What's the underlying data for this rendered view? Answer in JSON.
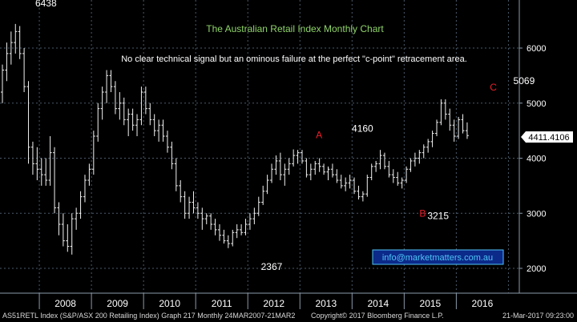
{
  "chart_data": {
    "type": "ohlc",
    "title": "The Australian Retail Index Monthly Chart",
    "subtitle": "No clear technical signal but an ominous failure at the perfect \"c-point\" retracement area.",
    "watermark": "info@marketmatters.com.au",
    "ylim": [
      1500,
      6700
    ],
    "y_ticks": [
      2000,
      3000,
      4000,
      5000,
      6000
    ],
    "y_tick_labels": [
      "2000",
      "3000",
      "4000",
      "5000",
      "6000"
    ],
    "x_ticks": [
      "2008",
      "2009",
      "2010",
      "2011",
      "2012",
      "2013",
      "2014",
      "2015",
      "2016"
    ],
    "last_price_label": "4411.4106",
    "last_price": 4411.41,
    "annotations": [
      {
        "id": "high_2007",
        "text": "6438",
        "x": 7,
        "y": 6438,
        "color": "#ffffff"
      },
      {
        "id": "low_2012",
        "text": "2367",
        "x": 61,
        "y": 2367,
        "color": "#ffffff"
      },
      {
        "id": "A",
        "text": "A",
        "x": 74,
        "y": 4100,
        "color": "#e8202a"
      },
      {
        "id": "peak_2013",
        "text": "4160",
        "x": 81,
        "y": 4160,
        "color": "#ffffff"
      },
      {
        "id": "B",
        "text": "B",
        "x": 96,
        "y": 3260,
        "color": "#e8202a"
      },
      {
        "id": "low_2015",
        "text": "3215",
        "x": 96,
        "y": 3215,
        "color": "#ffffff"
      },
      {
        "id": "C",
        "text": "C",
        "x": 115,
        "y": 5069,
        "color": "#e8202a"
      },
      {
        "id": "high_2016",
        "text": "5069",
        "x": 118,
        "y": 5069,
        "color": "#ffffff"
      }
    ],
    "series": [
      {
        "values": [
          [
            5200,
            5700,
            5000,
            5600
          ],
          [
            5600,
            6100,
            5400,
            5900
          ],
          [
            5900,
            6300,
            5700,
            6100
          ],
          [
            6100,
            6438,
            5900,
            6300
          ],
          [
            6300,
            6400,
            5800,
            5900
          ],
          [
            5900,
            6000,
            5200,
            5300
          ],
          [
            5300,
            5400,
            3900,
            4200
          ],
          [
            4200,
            4300,
            3700,
            3900
          ],
          [
            3900,
            4200,
            3600,
            3800
          ],
          [
            3800,
            4000,
            3500,
            3700
          ],
          [
            3700,
            4000,
            3500,
            3600
          ],
          [
            3600,
            4400,
            3500,
            4100
          ],
          [
            4100,
            4200,
            3000,
            3100
          ],
          [
            3100,
            3200,
            2600,
            2800
          ],
          [
            2800,
            3000,
            2400,
            2500
          ],
          [
            2500,
            2800,
            2300,
            2400
          ],
          [
            2400,
            3000,
            2250,
            2900
          ],
          [
            2900,
            3100,
            2700,
            3000
          ],
          [
            3000,
            3400,
            2900,
            3300
          ],
          [
            3300,
            3700,
            3200,
            3600
          ],
          [
            3600,
            3900,
            3500,
            3800
          ],
          [
            3800,
            4500,
            3700,
            4400
          ],
          [
            4400,
            5000,
            4300,
            4900
          ],
          [
            4900,
            5300,
            4700,
            5200
          ],
          [
            5200,
            5600,
            5000,
            5500
          ],
          [
            5500,
            5600,
            5200,
            5300
          ],
          [
            5300,
            5400,
            4800,
            4900
          ],
          [
            4900,
            5200,
            4700,
            5000
          ],
          [
            5000,
            5100,
            4600,
            4700
          ],
          [
            4700,
            4900,
            4400,
            4800
          ],
          [
            4800,
            4900,
            4500,
            4600
          ],
          [
            4600,
            4800,
            4400,
            4700
          ],
          [
            4700,
            5300,
            4600,
            5200
          ],
          [
            5200,
            5300,
            4800,
            4900
          ],
          [
            4900,
            5000,
            4600,
            4700
          ],
          [
            4700,
            4800,
            4400,
            4500
          ],
          [
            4500,
            4700,
            4300,
            4600
          ],
          [
            4600,
            4700,
            4300,
            4400
          ],
          [
            4400,
            4500,
            4100,
            4200
          ],
          [
            4200,
            4300,
            3800,
            3900
          ],
          [
            3900,
            4000,
            3400,
            3500
          ],
          [
            3500,
            3600,
            3200,
            3300
          ],
          [
            3300,
            3400,
            2900,
            3000
          ],
          [
            3000,
            3300,
            2900,
            3200
          ],
          [
            3200,
            3400,
            3000,
            3100
          ],
          [
            3100,
            3200,
            2900,
            3000
          ],
          [
            3000,
            3100,
            2700,
            2900
          ],
          [
            2900,
            3000,
            2800,
            2950
          ],
          [
            2950,
            3000,
            2700,
            2800
          ],
          [
            2800,
            2900,
            2600,
            2700
          ],
          [
            2700,
            2800,
            2500,
            2600
          ],
          [
            2600,
            2700,
            2450,
            2500
          ],
          [
            2500,
            2600,
            2367,
            2450
          ],
          [
            2450,
            2700,
            2400,
            2650
          ],
          [
            2650,
            2800,
            2550,
            2700
          ],
          [
            2700,
            2800,
            2600,
            2650
          ],
          [
            2650,
            2900,
            2600,
            2800
          ],
          [
            2800,
            3000,
            2700,
            2900
          ],
          [
            2900,
            3100,
            2800,
            3000
          ],
          [
            3000,
            3300,
            2950,
            3200
          ],
          [
            3200,
            3500,
            3150,
            3400
          ],
          [
            3400,
            3700,
            3350,
            3600
          ],
          [
            3600,
            3900,
            3550,
            3800
          ],
          [
            3800,
            4050,
            3700,
            3950
          ],
          [
            3950,
            4100,
            3600,
            3700
          ],
          [
            3700,
            3900,
            3500,
            3800
          ],
          [
            3800,
            4000,
            3700,
            3900
          ],
          [
            3900,
            4160,
            3850,
            4050
          ],
          [
            4050,
            4150,
            3900,
            4100
          ],
          [
            4100,
            4150,
            3900,
            3950
          ],
          [
            3950,
            4000,
            3650,
            3700
          ],
          [
            3700,
            3900,
            3600,
            3800
          ],
          [
            3800,
            3950,
            3700,
            3900
          ],
          [
            3900,
            4000,
            3750,
            3850
          ],
          [
            3850,
            3900,
            3700,
            3750
          ],
          [
            3750,
            3850,
            3600,
            3800
          ],
          [
            3800,
            3900,
            3650,
            3700
          ],
          [
            3700,
            3800,
            3550,
            3600
          ],
          [
            3600,
            3700,
            3450,
            3500
          ],
          [
            3500,
            3650,
            3400,
            3550
          ],
          [
            3550,
            3700,
            3450,
            3600
          ],
          [
            3600,
            3650,
            3350,
            3400
          ],
          [
            3400,
            3500,
            3250,
            3300
          ],
          [
            3300,
            3400,
            3215,
            3350
          ],
          [
            3350,
            3700,
            3300,
            3650
          ],
          [
            3650,
            3900,
            3600,
            3850
          ],
          [
            3850,
            3950,
            3750,
            3900
          ],
          [
            3900,
            4150,
            3800,
            4050
          ],
          [
            4050,
            4100,
            3800,
            3850
          ],
          [
            3850,
            3950,
            3650,
            3700
          ],
          [
            3700,
            3800,
            3550,
            3650
          ],
          [
            3650,
            3750,
            3500,
            3550
          ],
          [
            3550,
            3650,
            3450,
            3600
          ],
          [
            3600,
            3850,
            3550,
            3800
          ],
          [
            3800,
            4000,
            3750,
            3950
          ],
          [
            3950,
            4100,
            3850,
            4000
          ],
          [
            4000,
            4150,
            3900,
            4100
          ],
          [
            4100,
            4250,
            4000,
            4200
          ],
          [
            4200,
            4350,
            4100,
            4300
          ],
          [
            4300,
            4500,
            4200,
            4450
          ],
          [
            4450,
            4700,
            4400,
            4650
          ],
          [
            4650,
            5069,
            4600,
            5000
          ],
          [
            5000,
            5069,
            4700,
            4800
          ],
          [
            4800,
            4900,
            4500,
            4600
          ],
          [
            4600,
            4700,
            4300,
            4400
          ],
          [
            4400,
            4750,
            4350,
            4700
          ],
          [
            4700,
            4800,
            4450,
            4500
          ],
          [
            4500,
            4650,
            4350,
            4411.41
          ]
        ]
      }
    ]
  },
  "footer": {
    "left": "AS51RETL Index (S&P/ASX 200 Retailing Index) Graph 217  Monthly 24MAR2007-21MAR2",
    "center": "Copyright© 2017 Bloomberg Finance L.P.",
    "right": "21-Mar-2017 09:23:00"
  },
  "colors": {
    "background": "#000000",
    "grid": "#4a5a6a",
    "bars": "#f2f2f2",
    "title": "#8fd46a",
    "annotation_red": "#e8202a",
    "watermark_text": "#4fc3f7",
    "watermark_border": "#4fc3f7",
    "watermark_bg": "#0b2a8a"
  }
}
